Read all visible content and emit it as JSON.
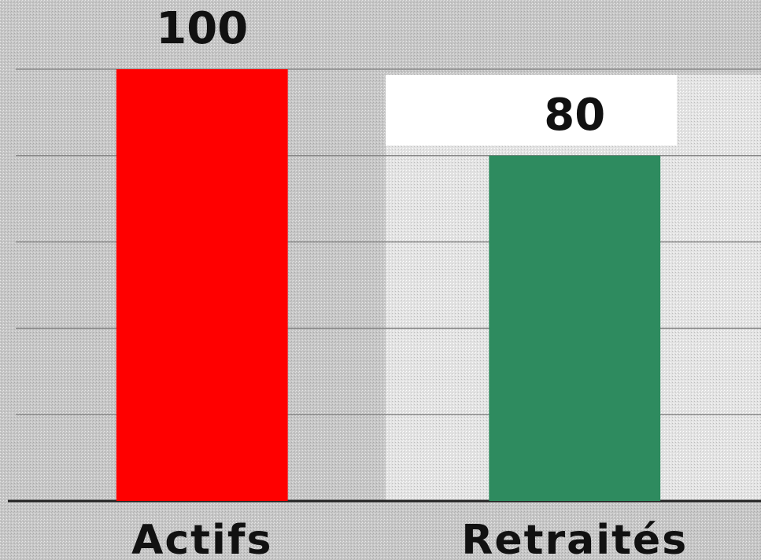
{
  "chart_data": {
    "type": "bar",
    "categories": [
      "Actifs",
      "Retraités"
    ],
    "values": [
      100,
      80
    ],
    "colors": [
      "#ff0000",
      "#2e8b5f"
    ],
    "ylim": [
      0,
      100
    ],
    "yticks": [
      0,
      20,
      40,
      60,
      80,
      100
    ],
    "grid": true
  }
}
